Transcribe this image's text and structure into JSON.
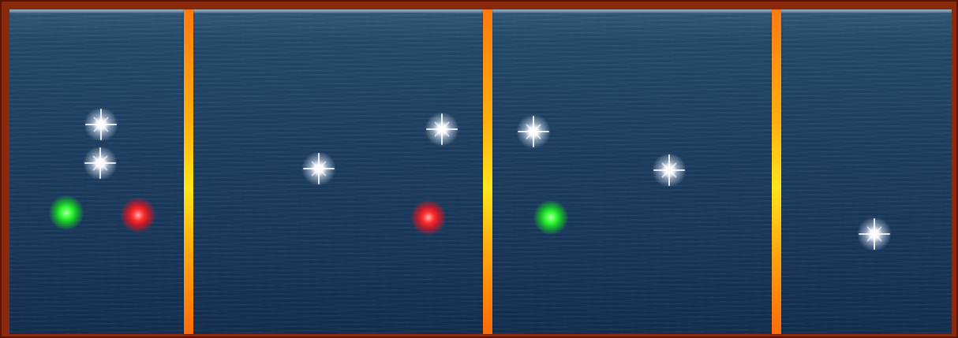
{
  "scene": {
    "panel_count": 4,
    "colors": {
      "frame": "#8a2a0c",
      "water": "#1d3f62",
      "divider_top": "#ff7a10",
      "divider_mid": "#ffe51a",
      "white_light": "#ffffff",
      "green_light": "#33ff33",
      "red_light": "#ff2a2a"
    },
    "panels": [
      {
        "lights": [
          "white",
          "white",
          "green",
          "red"
        ]
      },
      {
        "lights": [
          "white",
          "white",
          "red"
        ]
      },
      {
        "lights": [
          "white",
          "white",
          "green"
        ]
      },
      {
        "lights": [
          "white"
        ]
      }
    ]
  }
}
